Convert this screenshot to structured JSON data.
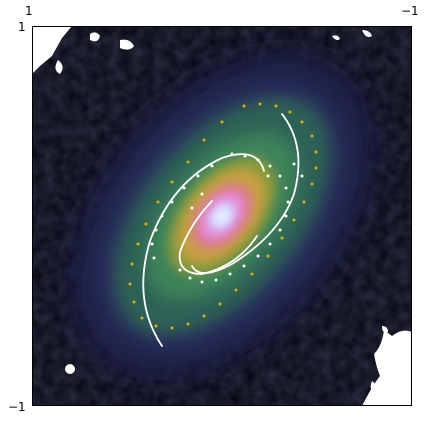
{
  "figure": {
    "top_axis": {
      "left_tick": "1",
      "right_tick": "−1"
    },
    "left_axis": {
      "top_tick": "1",
      "bottom_tick": "−1"
    },
    "xlim": [
      1,
      -1
    ],
    "ylim": [
      -1,
      1
    ]
  },
  "colors": {
    "background": "#05050d",
    "outer_glow": "#2a2f5a",
    "arm_green": "#3f8a5a",
    "disk_gold": "#c8b43c",
    "core_pink": "#e889d8",
    "core_white": "#eef3ff",
    "overlay": "#ffffff",
    "dot_gold": "#e0b000"
  }
}
